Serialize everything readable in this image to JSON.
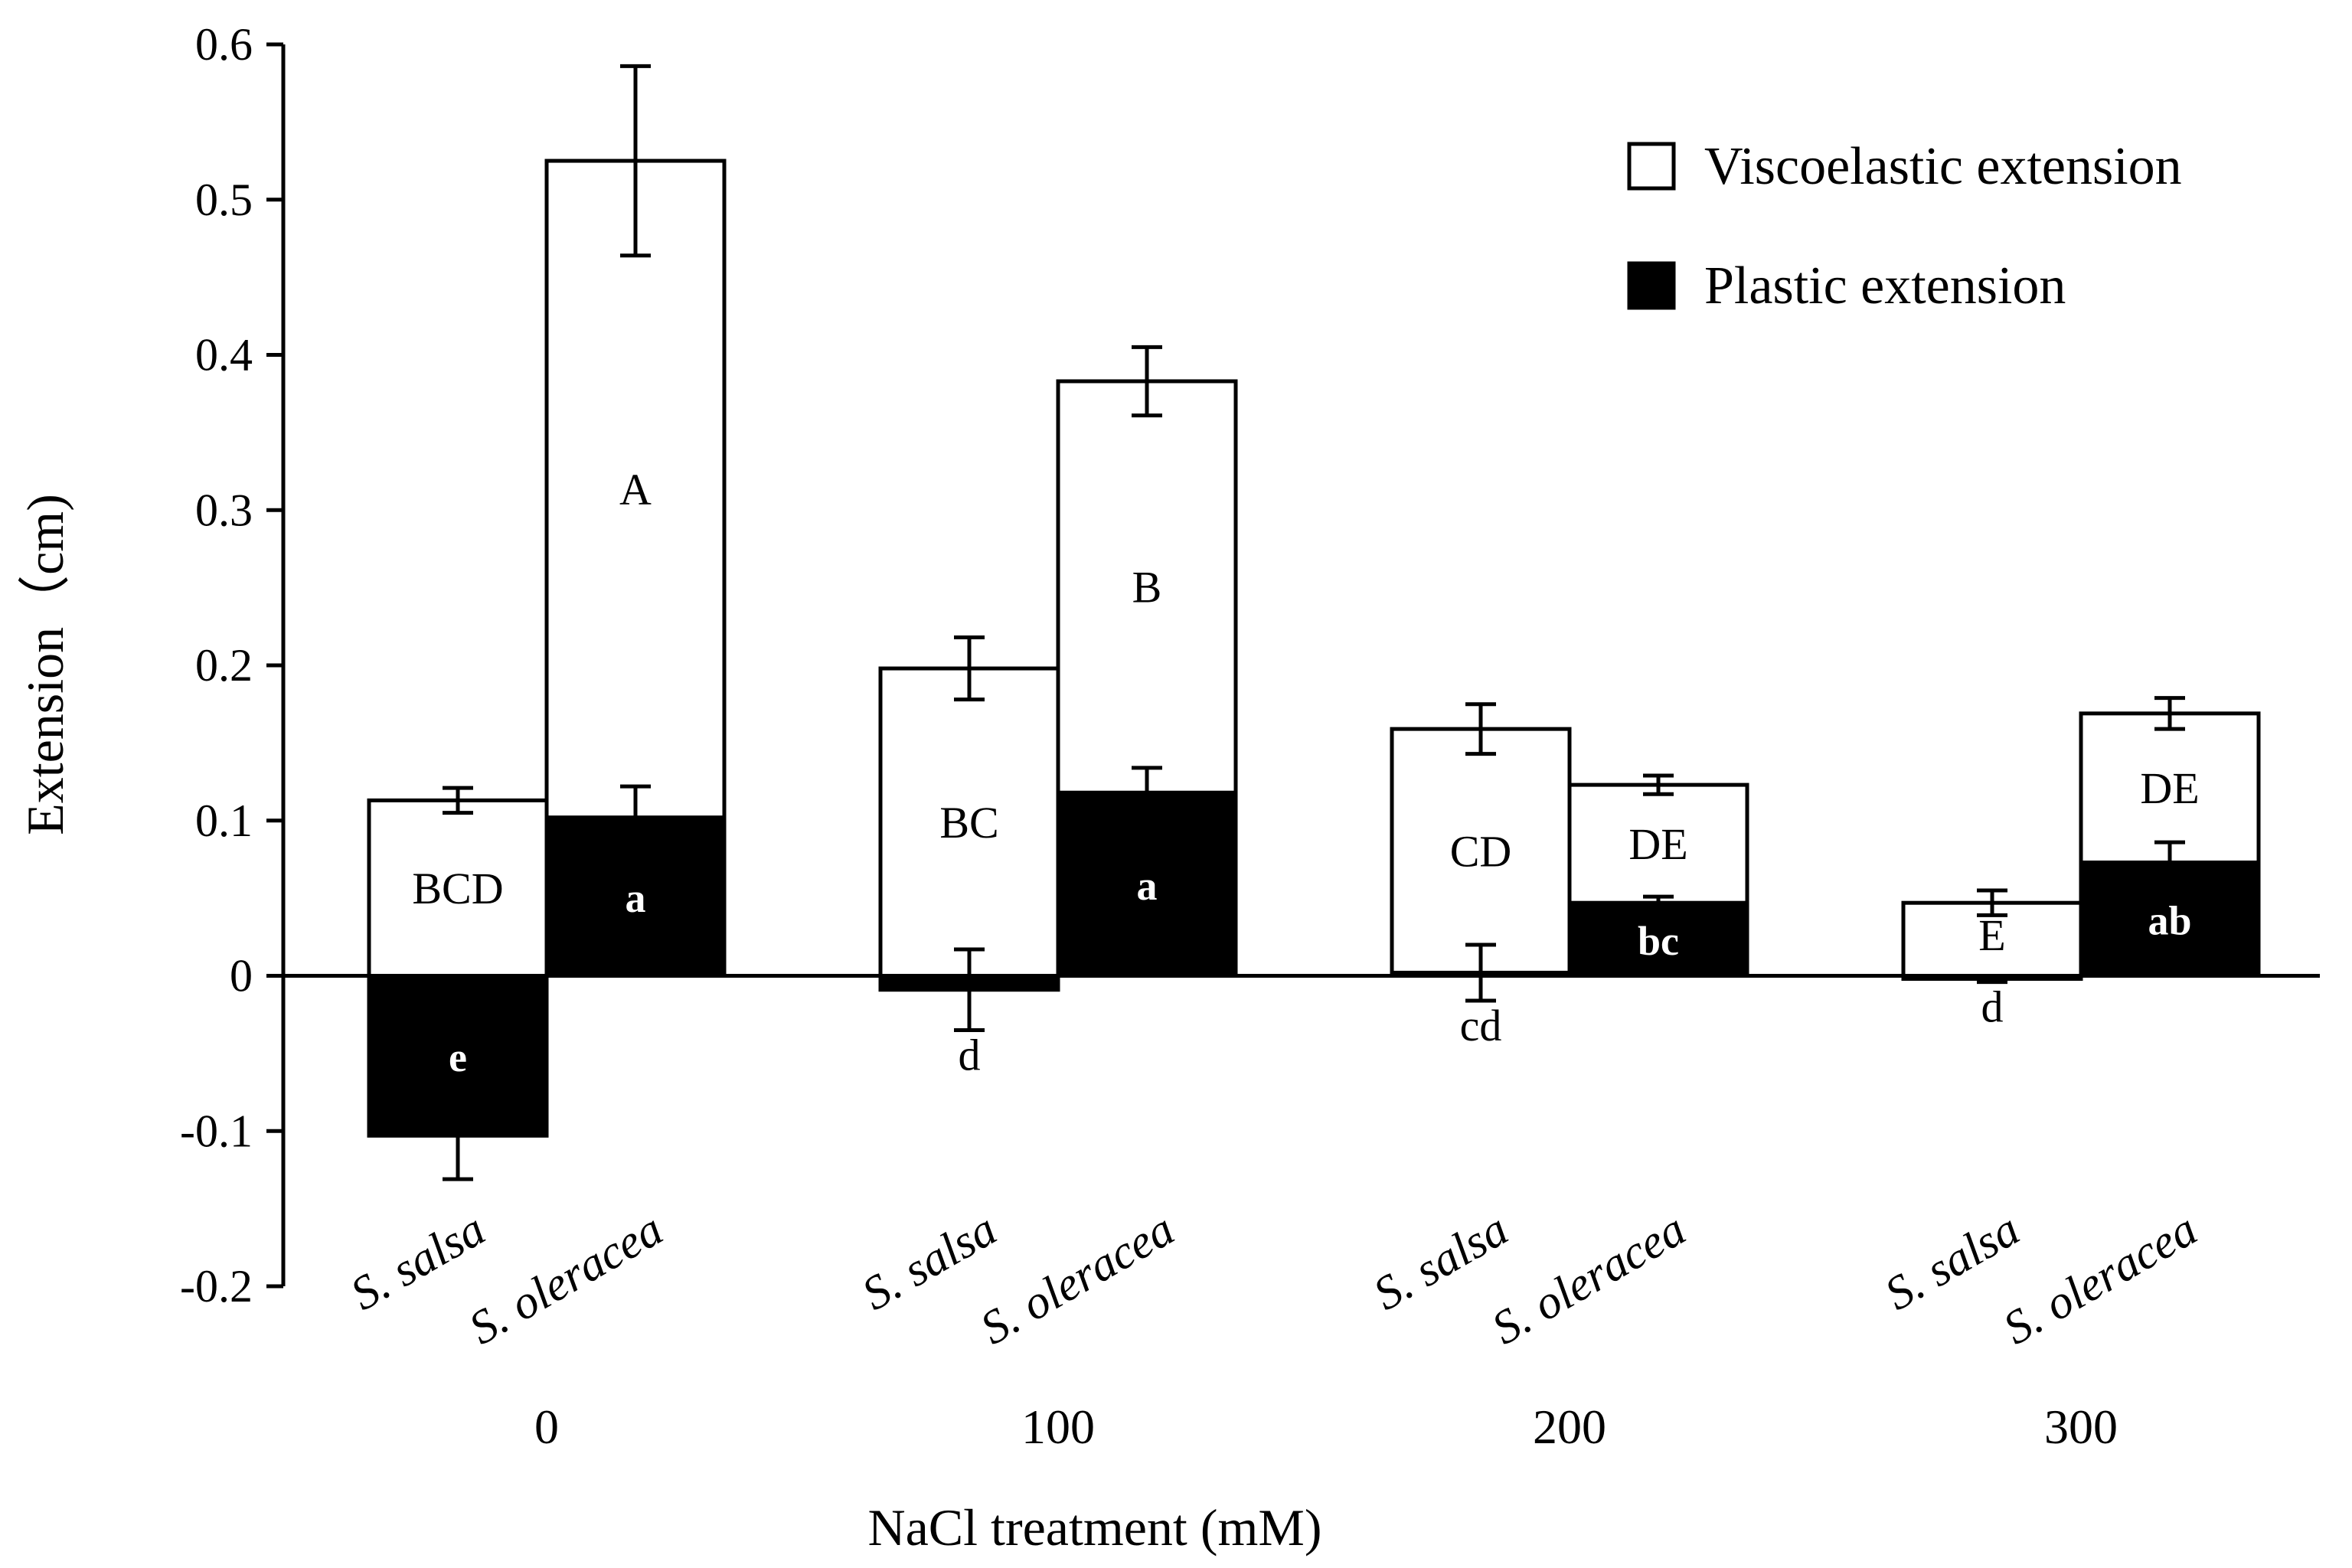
{
  "chart_data": {
    "type": "bar",
    "stacked": true,
    "xlabel": "NaCl treatment (mM)",
    "ylabel": "Extension（cm)",
    "ylim": [
      -0.2,
      0.6
    ],
    "yticks": [
      -0.2,
      -0.1,
      0,
      0.1,
      0.2,
      0.3,
      0.4,
      0.5,
      0.6
    ],
    "ytick_labels": [
      "-0.2",
      "-0.1",
      "0",
      "0.1",
      "0.2",
      "0.3",
      "0.4",
      "0.5",
      "0.6"
    ],
    "groups": [
      "0",
      "100",
      "200",
      "300"
    ],
    "species": [
      "S. salsa",
      "S. oleracea"
    ],
    "legend": {
      "position": "top-right",
      "entries": [
        {
          "name": "Viscoelastic extension",
          "color": "#ffffff"
        },
        {
          "name": "Plastic extension",
          "color": "#000000"
        }
      ]
    },
    "bars": [
      {
        "group": "0",
        "species": "S. salsa",
        "total": 0.113,
        "total_err": 0.008,
        "viscoelastic_letter": "BCD",
        "plastic": -0.103,
        "plastic_err": 0.028,
        "plastic_letter": "e"
      },
      {
        "group": "0",
        "species": "S. oleracea",
        "total": 0.525,
        "total_err": 0.061,
        "viscoelastic_letter": "A",
        "plastic": 0.102,
        "plastic_err": 0.02,
        "plastic_letter": "a"
      },
      {
        "group": "100",
        "species": "S. salsa",
        "total": 0.198,
        "total_err": 0.02,
        "viscoelastic_letter": "BC",
        "plastic": -0.009,
        "plastic_err": 0.026,
        "plastic_letter": "d"
      },
      {
        "group": "100",
        "species": "S. oleracea",
        "total": 0.383,
        "total_err": 0.022,
        "viscoelastic_letter": "B",
        "plastic": 0.118,
        "plastic_err": 0.016,
        "plastic_letter": "a"
      },
      {
        "group": "200",
        "species": "S. salsa",
        "total": 0.159,
        "total_err": 0.016,
        "viscoelastic_letter": "CD",
        "plastic": 0.002,
        "plastic_err": 0.018,
        "plastic_letter": "cd"
      },
      {
        "group": "200",
        "species": "S. oleracea",
        "total": 0.123,
        "total_err": 0.006,
        "viscoelastic_letter": "DE",
        "plastic": 0.047,
        "plastic_err": 0.004,
        "plastic_letter": "bc"
      },
      {
        "group": "300",
        "species": "S. salsa",
        "total": 0.047,
        "total_err": 0.008,
        "viscoelastic_letter": "E",
        "plastic": -0.002,
        "plastic_err": 0.002,
        "plastic_letter": "d"
      },
      {
        "group": "300",
        "species": "S. oleracea",
        "total": 0.169,
        "total_err": 0.01,
        "viscoelastic_letter": "DE",
        "plastic": 0.073,
        "plastic_err": 0.013,
        "plastic_letter": "ab"
      }
    ]
  }
}
